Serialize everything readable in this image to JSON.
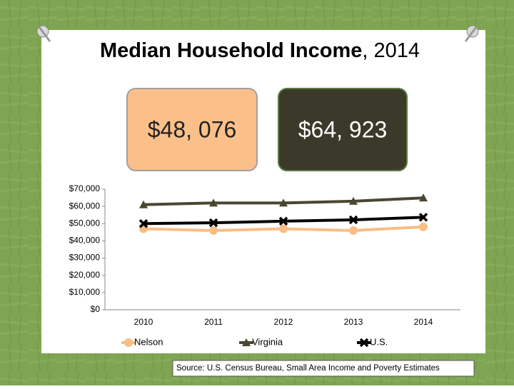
{
  "chart_data": {
    "type": "line",
    "title": "Median Household Income",
    "title_suffix": ", 2014",
    "callouts": [
      "$48, 076",
      "$64, 923"
    ],
    "source": "Source:  U.S. Census Bureau, Small Area Income and Poverty Estimates",
    "categories": [
      "2010",
      "2011",
      "2012",
      "2013",
      "2014"
    ],
    "series": [
      {
        "name": "Nelson",
        "color": "#f9bd85",
        "values": [
          47000,
          46000,
          47000,
          46000,
          48076
        ]
      },
      {
        "name": "Virginia",
        "color": "#4a4632",
        "values": [
          61000,
          62000,
          62000,
          63000,
          64923
        ]
      },
      {
        "name": "U.S.",
        "color": "#000000",
        "values": [
          50000,
          50500,
          51400,
          52200,
          53700
        ]
      }
    ],
    "ylim": [
      0,
      70000
    ],
    "yticks": [
      {
        "value": 0,
        "label": "$0"
      },
      {
        "value": 10000,
        "label": "$10,000"
      },
      {
        "value": 20000,
        "label": "$20,000"
      },
      {
        "value": 30000,
        "label": "$30,000"
      },
      {
        "value": 40000,
        "label": "$40,000"
      },
      {
        "value": 50000,
        "label": "$50,000"
      },
      {
        "value": 60000,
        "label": "$60,000"
      },
      {
        "value": 70000,
        "label": "$70,000"
      }
    ],
    "legend": "bottom"
  }
}
